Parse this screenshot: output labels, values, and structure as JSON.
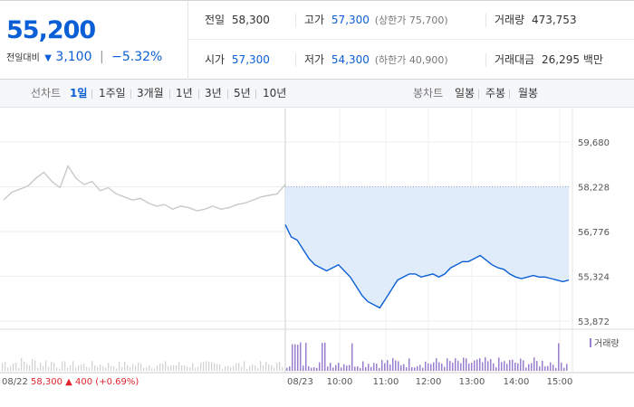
{
  "quote": {
    "price": "55,200",
    "change_label": "전일대비",
    "change_arrow": "▼",
    "change_value": "3,100",
    "change_percent": "−5.32%",
    "colors": {
      "down": "#0b5fd6",
      "up": "#e2242e"
    }
  },
  "stats": {
    "prev_close": {
      "label": "전일",
      "value": "58,300"
    },
    "high": {
      "label": "고가",
      "value": "57,300",
      "sub": "(상한가 75,700)"
    },
    "volume": {
      "label": "거래량",
      "value": "473,753"
    },
    "open": {
      "label": "시가",
      "value": "57,300"
    },
    "low": {
      "label": "저가",
      "value": "54,300",
      "sub": "(하한가 40,900)"
    },
    "amount": {
      "label": "거래대금",
      "value": "26,295",
      "unit": "백만"
    }
  },
  "line_tabs": {
    "label": "선차트",
    "items": [
      "1일",
      "1주일",
      "3개월",
      "1년",
      "3년",
      "5년",
      "10년"
    ],
    "active": "1일"
  },
  "candle_tabs": {
    "label": "봉차트",
    "items": [
      "일봉",
      "주봉",
      "월봉"
    ]
  },
  "chart_data": {
    "type": "line",
    "y_ticks": [
      "59,680",
      "58,228",
      "56,776",
      "55,324",
      "53,872"
    ],
    "ylim": [
      53872,
      59680
    ],
    "reference_line": 58228,
    "prev_session": {
      "date": "08/22",
      "close": "58,300",
      "change_arrow": "▲",
      "change": "400",
      "change_percent": "(+0.69%)",
      "y": [
        57800,
        58050,
        58150,
        58250,
        58500,
        58700,
        58400,
        58200,
        58900,
        58500,
        58300,
        58400,
        58100,
        58200,
        58000,
        57900,
        57800,
        57850,
        57700,
        57600,
        57650,
        57500,
        57600,
        57550,
        57450,
        57500,
        57600,
        57500,
        57550,
        57650,
        57700,
        57800,
        57900,
        57950,
        58000,
        58300
      ]
    },
    "today": {
      "date": "08/23",
      "x_ticks": [
        "10:00",
        "11:00",
        "12:00",
        "13:00",
        "14:00",
        "15:00"
      ],
      "y": [
        57000,
        56600,
        56500,
        56200,
        55900,
        55700,
        55600,
        55500,
        55600,
        55700,
        55500,
        55300,
        55000,
        54700,
        54500,
        54400,
        54300,
        54600,
        54900,
        55200,
        55300,
        55400,
        55400,
        55300,
        55350,
        55400,
        55300,
        55400,
        55600,
        55700,
        55800,
        55800,
        55900,
        56000,
        55850,
        55700,
        55600,
        55550,
        55400,
        55300,
        55250,
        55300,
        55350,
        55300,
        55300,
        55250,
        55200,
        55150,
        55200
      ]
    },
    "volume": {
      "legend": "거래량",
      "color": "#9b7fcf"
    }
  }
}
